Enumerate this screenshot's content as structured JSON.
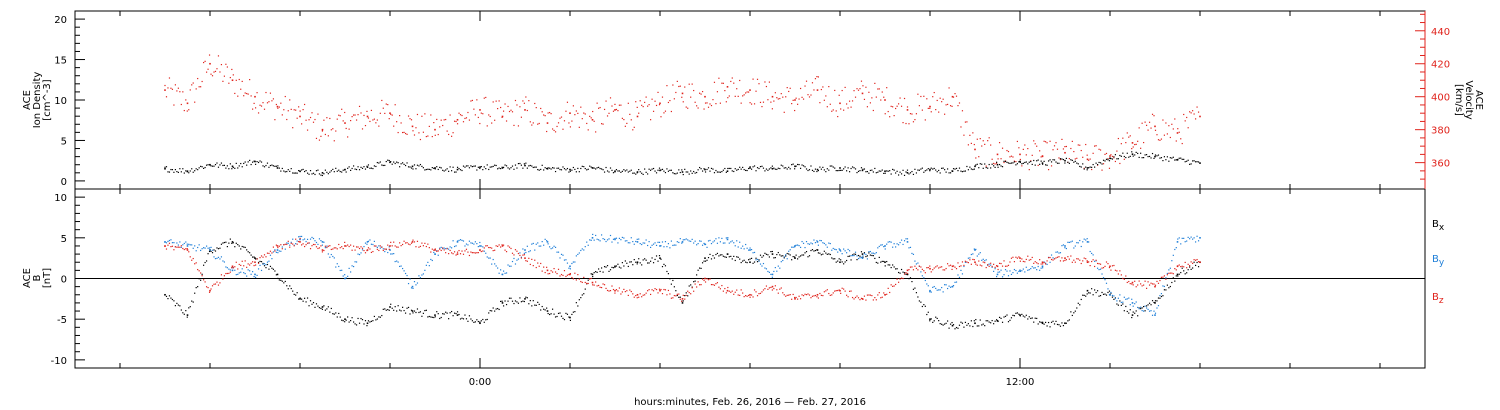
{
  "colors": {
    "black": "#000000",
    "red": "#e0231c",
    "blue": "#1f7fd8"
  },
  "chart_data": [
    {
      "type": "scatter",
      "panel": "top",
      "title": "",
      "ylabel_left": [
        "ACE",
        "Ion Density",
        "[cm^-3]"
      ],
      "ylabel_right": [
        "ACE",
        "Velocity",
        "[km/s]"
      ],
      "ylim_left": [
        -1,
        21
      ],
      "ylim_right": [
        344,
        452
      ],
      "yticks_left": [
        "0",
        "5",
        "10",
        "15",
        "20"
      ],
      "yticks_right": [
        "360",
        "380",
        "400",
        "420",
        "440"
      ],
      "grid": false,
      "series": [
        {
          "axis": "left",
          "color": "black",
          "x": [
            -7.0,
            -6.5,
            -6.0,
            -5.5,
            -5.0,
            -4.5,
            -4.0,
            -3.5,
            -3.0,
            -2.5,
            -2.0,
            -1.5,
            -1.0,
            -0.5,
            0.0,
            0.5,
            1.0,
            1.5,
            2.0,
            2.5,
            3.0,
            3.5,
            4.0,
            4.5,
            5.0,
            5.5,
            6.0,
            6.5,
            7.0,
            7.5,
            8.0,
            8.5,
            9.0,
            9.5,
            10.0,
            10.5,
            11.0,
            11.5,
            12.0,
            12.5,
            13.0,
            13.5,
            14.0,
            14.5,
            15.0,
            15.5,
            16.0
          ],
          "y": [
            1.5,
            1.2,
            2.0,
            1.8,
            2.4,
            1.6,
            1.2,
            1.0,
            1.4,
            1.7,
            2.3,
            1.8,
            1.6,
            1.4,
            1.7,
            1.6,
            1.9,
            1.5,
            1.4,
            1.6,
            1.2,
            1.1,
            1.3,
            1.1,
            1.4,
            1.2,
            1.6,
            1.5,
            1.8,
            1.4,
            1.6,
            1.3,
            1.2,
            1.0,
            1.4,
            1.2,
            1.8,
            2.0,
            2.4,
            2.2,
            2.5,
            1.6,
            2.8,
            3.3,
            3.0,
            2.6,
            2.2
          ]
        },
        {
          "axis": "right",
          "color": "red",
          "x": [
            -7.0,
            -6.5,
            -6.0,
            -5.5,
            -5.0,
            -4.5,
            -4.0,
            -3.5,
            -3.0,
            -2.5,
            -2.0,
            -1.5,
            -1.0,
            -0.5,
            0.0,
            0.5,
            1.0,
            1.5,
            2.0,
            2.5,
            3.0,
            3.5,
            4.0,
            4.5,
            5.0,
            5.5,
            6.0,
            6.5,
            7.0,
            7.5,
            8.0,
            8.5,
            9.0,
            9.5,
            10.0,
            10.5,
            11.0,
            11.5,
            12.0,
            12.5,
            13.0,
            13.5,
            14.0,
            14.5,
            15.0,
            15.5,
            16.0
          ],
          "y": [
            404,
            396,
            420,
            410,
            400,
            394,
            388,
            380,
            384,
            388,
            390,
            382,
            380,
            386,
            392,
            388,
            392,
            384,
            390,
            386,
            392,
            388,
            396,
            402,
            400,
            406,
            404,
            400,
            398,
            404,
            396,
            402,
            398,
            392,
            394,
            400,
            368,
            365,
            365,
            364,
            366,
            362,
            364,
            372,
            382,
            378,
            388
          ]
        }
      ]
    },
    {
      "type": "scatter",
      "panel": "bottom",
      "title": "",
      "ylabel_left": [
        "ACE",
        "B",
        "[nT]"
      ],
      "ylim": [
        -11,
        11
      ],
      "yticks": [
        "-10",
        "-5",
        "0",
        "5",
        "10"
      ],
      "zero_line": true,
      "grid": false,
      "legend_position": "right",
      "series": [
        {
          "name": "B_x",
          "color": "black",
          "x": [
            -7.0,
            -6.5,
            -6.0,
            -5.5,
            -5.0,
            -4.5,
            -4.0,
            -3.5,
            -3.0,
            -2.5,
            -2.0,
            -1.5,
            -1.0,
            -0.5,
            0.0,
            0.5,
            1.0,
            1.5,
            2.0,
            2.5,
            3.0,
            3.5,
            4.0,
            4.5,
            5.0,
            5.5,
            6.0,
            6.5,
            7.0,
            7.5,
            8.0,
            8.5,
            9.0,
            9.5,
            10.0,
            10.5,
            11.0,
            11.5,
            12.0,
            12.5,
            13.0,
            13.5,
            14.0,
            14.5,
            15.0,
            15.5,
            16.0
          ],
          "y": [
            -2.0,
            -4.5,
            3.5,
            4.5,
            2.5,
            0.5,
            -2.5,
            -3.5,
            -5.0,
            -5.5,
            -3.5,
            -4.0,
            -4.5,
            -4.5,
            -5.5,
            -3.0,
            -2.5,
            -4.0,
            -4.8,
            0.5,
            1.5,
            2.0,
            2.5,
            -3.0,
            2.5,
            3.0,
            2.0,
            3.0,
            2.5,
            3.5,
            2.0,
            3.0,
            2.0,
            0.5,
            -5.0,
            -5.8,
            -5.5,
            -5.2,
            -4.5,
            -5.5,
            -5.5,
            -1.5,
            -2.0,
            -4.5,
            -3.0,
            0.5,
            2.0
          ]
        },
        {
          "name": "B_y",
          "color": "blue",
          "x": [
            -7.0,
            -6.5,
            -6.0,
            -5.5,
            -5.0,
            -4.5,
            -4.0,
            -3.5,
            -3.0,
            -2.5,
            -2.0,
            -1.5,
            -1.0,
            -0.5,
            0.0,
            0.5,
            1.0,
            1.5,
            2.0,
            2.5,
            3.0,
            3.5,
            4.0,
            4.5,
            5.0,
            5.5,
            6.0,
            6.5,
            7.0,
            7.5,
            8.0,
            8.5,
            9.0,
            9.5,
            10.0,
            10.5,
            11.0,
            11.5,
            12.0,
            12.5,
            13.0,
            13.5,
            14.0,
            14.5,
            15.0,
            15.5,
            16.0
          ],
          "y": [
            4.5,
            4.0,
            3.5,
            1.0,
            0.5,
            3.5,
            4.8,
            4.5,
            0.0,
            4.5,
            3.5,
            -1.0,
            3.0,
            4.5,
            4.0,
            0.5,
            3.5,
            4.5,
            1.5,
            5.0,
            4.8,
            4.5,
            4.0,
            4.5,
            4.2,
            4.8,
            3.5,
            0.5,
            4.0,
            4.5,
            3.5,
            2.5,
            4.0,
            4.5,
            -1.5,
            -1.0,
            3.5,
            0.5,
            1.0,
            1.5,
            4.0,
            4.5,
            -2.0,
            -3.0,
            -4.5,
            4.5,
            5.0
          ]
        },
        {
          "name": "B_z",
          "color": "red",
          "x": [
            -7.0,
            -6.5,
            -6.0,
            -5.5,
            -5.0,
            -4.5,
            -4.0,
            -3.5,
            -3.0,
            -2.5,
            -2.0,
            -1.5,
            -1.0,
            -0.5,
            0.0,
            0.5,
            1.0,
            1.5,
            2.0,
            2.5,
            3.0,
            3.5,
            4.0,
            4.5,
            5.0,
            5.5,
            6.0,
            6.5,
            7.0,
            7.5,
            8.0,
            8.5,
            9.0,
            9.5,
            10.0,
            10.5,
            11.0,
            11.5,
            12.0,
            12.5,
            13.0,
            13.5,
            14.0,
            14.5,
            15.0,
            15.5,
            16.0
          ],
          "y": [
            4.0,
            3.5,
            -1.5,
            1.5,
            2.0,
            4.0,
            4.5,
            3.5,
            4.0,
            3.5,
            4.0,
            4.5,
            3.5,
            3.0,
            3.5,
            4.0,
            2.5,
            1.0,
            0.5,
            -0.5,
            -1.5,
            -2.0,
            -1.5,
            -2.5,
            0.0,
            -1.5,
            -2.0,
            -1.0,
            -2.5,
            -2.0,
            -1.5,
            -2.5,
            -2.0,
            1.0,
            1.2,
            1.5,
            2.0,
            1.5,
            2.5,
            2.0,
            2.5,
            2.0,
            1.5,
            -0.5,
            -1.0,
            1.5,
            2.0
          ]
        }
      ]
    }
  ],
  "legend": {
    "bx_base": "B",
    "bx_sub": "x",
    "by_base": "B",
    "by_sub": "y",
    "bz_base": "B",
    "bz_sub": "z"
  },
  "x_axis": {
    "xlim_hours": [
      -9.0,
      21.0
    ],
    "major_ticks": [
      0,
      12
    ],
    "major_labels": [
      "0:00",
      "12:00"
    ],
    "minor_step_hours": 2,
    "label": "hours:minutes, Feb. 26, 2016 — Feb. 27, 2016"
  }
}
